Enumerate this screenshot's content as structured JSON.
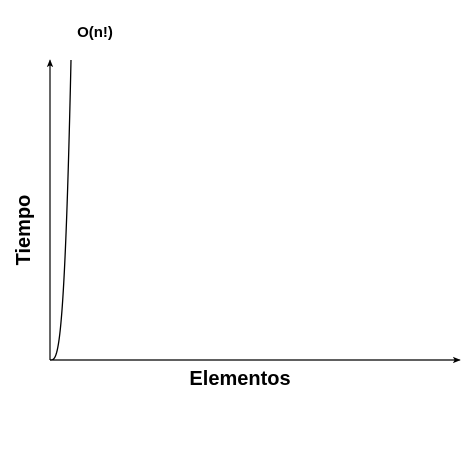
{
  "chart_data": {
    "type": "line",
    "title": "O(n!)",
    "xlabel": "Elementos",
    "ylabel": "Tiempo",
    "series": [
      {
        "name": "O(n!)",
        "function": "factorial"
      }
    ],
    "axis_ticks": false,
    "grid": false,
    "legend": "none",
    "colors": {
      "axis": "#000000",
      "curve": "#000000",
      "background": "#ffffff"
    }
  }
}
